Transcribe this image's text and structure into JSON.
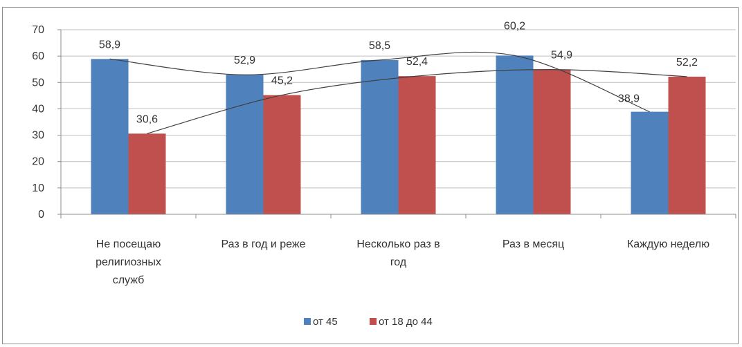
{
  "chart_data": {
    "type": "bar",
    "categories": [
      [
        "Не посещаю",
        "религиозных",
        "служб"
      ],
      [
        "Раз в год и реже"
      ],
      [
        "Несколько раз в",
        "год"
      ],
      [
        "Раз в месяц"
      ],
      [
        "Каждую неделю"
      ]
    ],
    "series": [
      {
        "name": "от 45",
        "color": "#4f81bd",
        "values": [
          58.9,
          52.9,
          58.5,
          60.2,
          38.9
        ],
        "labels": [
          "58,9",
          "52,9",
          "58,5",
          "60,2",
          "38,9"
        ]
      },
      {
        "name": "от 18 до 44",
        "color": "#c0504d",
        "values": [
          30.6,
          45.2,
          52.4,
          54.9,
          52.2
        ],
        "labels": [
          "30,6",
          "45,2",
          "52,4",
          "54,9",
          "52,2"
        ]
      }
    ],
    "yticks": [
      "0",
      "10",
      "20",
      "30",
      "40",
      "50",
      "60",
      "70"
    ],
    "ylim": [
      0,
      70
    ],
    "grid": true,
    "trendlines": true,
    "legend": "bottom-center",
    "title": "",
    "xlabel": "",
    "ylabel": ""
  }
}
